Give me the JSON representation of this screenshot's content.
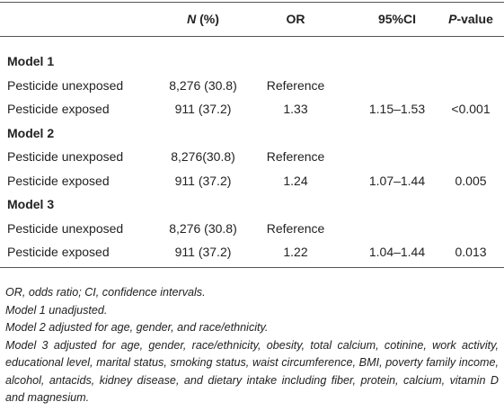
{
  "table": {
    "header": {
      "n": {
        "em": "N",
        "text": " (%)"
      },
      "or": "OR",
      "ci": "95%CI",
      "p": {
        "em": "P",
        "text": "-value"
      }
    },
    "groups": [
      {
        "title": "Model 1",
        "rows": [
          [
            "Pesticide unexposed",
            "8,276 (30.8)",
            "Reference"
          ],
          [
            "Pesticide exposed",
            "911 (37.2)",
            "1.33",
            "1.15–1.53",
            "<0.001"
          ]
        ]
      },
      {
        "title": "Model 2",
        "rows": [
          [
            "Pesticide unexposed",
            "8,276(30.8)",
            "Reference"
          ],
          [
            "Pesticide exposed",
            "911 (37.2)",
            "1.24",
            "1.07–1.44",
            "0.005"
          ]
        ]
      },
      {
        "title": "Model 3",
        "rows": [
          [
            "Pesticide unexposed",
            "8,276 (30.8)",
            "Reference"
          ],
          [
            "Pesticide exposed",
            "911 (37.2)",
            "1.22",
            "1.04–1.44",
            "0.013"
          ]
        ]
      }
    ]
  },
  "footnotes": [
    "OR, odds ratio; CI, confidence intervals.",
    "Model 1 unadjusted.",
    "Model 2 adjusted for age, gender, and race/ethnicity.",
    "Model 3 adjusted for age, gender, race/ethnicity, obesity, total calcium, cotinine, work activity, educational level, marital status, smoking status, waist circumference, BMI, poverty family income, alcohol, antacids, kidney disease, and dietary intake including fiber, protein, calcium, vitamin D and magnesium."
  ]
}
